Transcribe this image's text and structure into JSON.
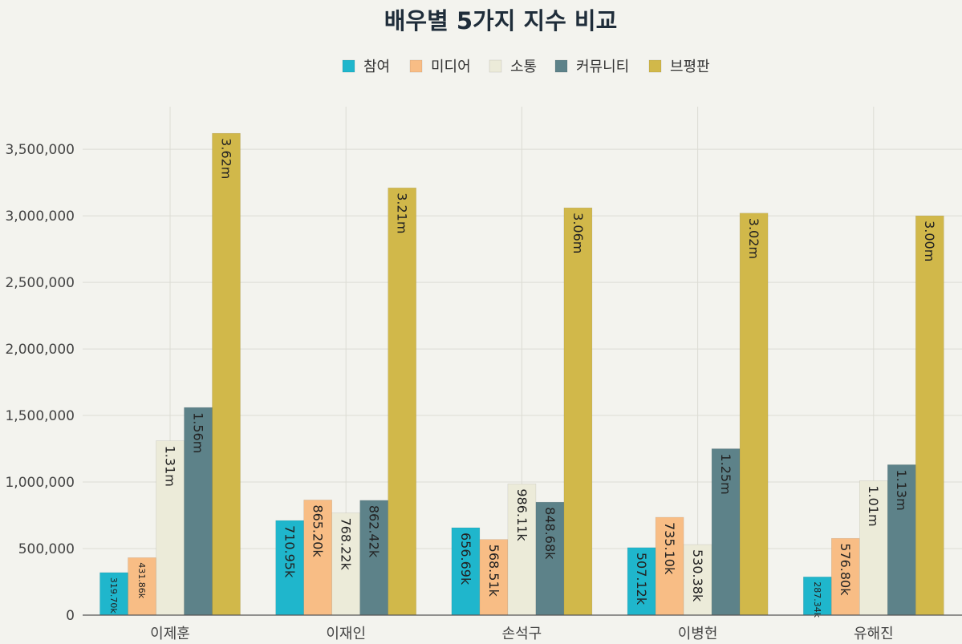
{
  "chart_data": {
    "type": "bar",
    "title": "배우별 5가지 지수 비교",
    "xlabel": "",
    "ylabel": "",
    "categories": [
      "이제훈",
      "이재인",
      "손석구",
      "이병헌",
      "유해진"
    ],
    "series": [
      {
        "name": "참여",
        "color": "#1fb6cc",
        "values": [
          319700,
          710950,
          656690,
          507120,
          287340
        ],
        "labels": [
          "319.70k",
          "710.95k",
          "656.69k",
          "507.12k",
          "287.34k"
        ]
      },
      {
        "name": "미디어",
        "color": "#f8bd85",
        "values": [
          431860,
          865200,
          568510,
          735100,
          576800
        ],
        "labels": [
          "431.86k",
          "865.20k",
          "568.51k",
          "735.10k",
          "576.80k"
        ]
      },
      {
        "name": "소통",
        "color": "#ecebd9",
        "values": [
          1310000,
          768220,
          986110,
          530380,
          1010000
        ],
        "labels": [
          "1.31m",
          "768.22k",
          "986.11k",
          "530.38k",
          "1.01m"
        ]
      },
      {
        "name": "커뮤니티",
        "color": "#5d8289",
        "values": [
          1560000,
          862420,
          848680,
          1250000,
          1130000
        ],
        "labels": [
          "1.56m",
          "862.42k",
          "848.68k",
          "1.25m",
          "1.13m"
        ]
      },
      {
        "name": "브평판",
        "color": "#d1b84a",
        "values": [
          3620000,
          3210000,
          3060000,
          3020000,
          3000000
        ],
        "labels": [
          "3.62m",
          "3.21m",
          "3.06m",
          "3.02m",
          "3.00m"
        ]
      }
    ],
    "yticks": [
      "0",
      "500,000",
      "1,000,000",
      "1,500,000",
      "2,000,000",
      "2,500,000",
      "3,000,000",
      "3,500,000"
    ],
    "ylim": [
      0,
      3820000
    ],
    "grid": true,
    "legend": "top-center"
  }
}
